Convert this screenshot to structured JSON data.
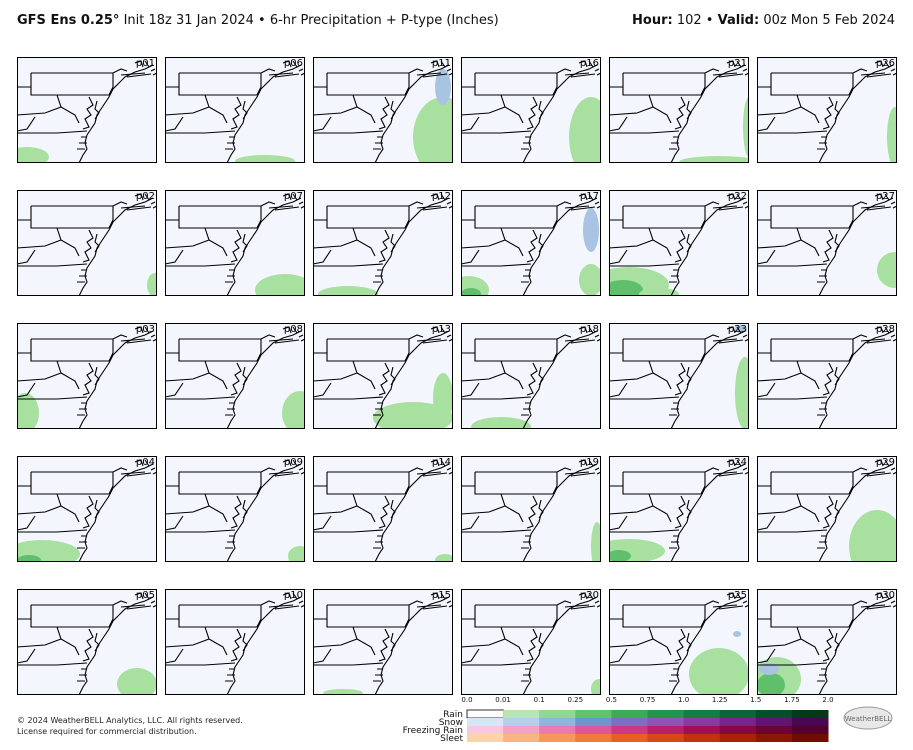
{
  "header": {
    "model": "GFS Ens 0.25°",
    "description": "Init 18z 31 Jan 2024 • 6-hr Precipitation + P-type (Inches)",
    "hour_label": "Hour:",
    "hour": "102 •",
    "valid_label": "Valid:",
    "valid": "00z Mon 5 Feb 2024"
  },
  "panels": [
    {
      "label": "p01"
    },
    {
      "label": "p02"
    },
    {
      "label": "p03"
    },
    {
      "label": "p04"
    },
    {
      "label": "p05"
    },
    {
      "label": "p06"
    },
    {
      "label": "p07"
    },
    {
      "label": "p08"
    },
    {
      "label": "p09"
    },
    {
      "label": "p10"
    },
    {
      "label": "p11"
    },
    {
      "label": "p12"
    },
    {
      "label": "p13"
    },
    {
      "label": "p14"
    },
    {
      "label": "p15"
    },
    {
      "label": "p16"
    },
    {
      "label": "p17"
    },
    {
      "label": "p18"
    },
    {
      "label": "p19"
    },
    {
      "label": "p20"
    },
    {
      "label": "p21"
    },
    {
      "label": "p22"
    },
    {
      "label": "p23"
    },
    {
      "label": "p24"
    },
    {
      "label": "p25"
    },
    {
      "label": "p26"
    },
    {
      "label": "p27"
    },
    {
      "label": "p28"
    },
    {
      "label": "p29"
    },
    {
      "label": "p30"
    }
  ],
  "legend": {
    "ticks": [
      "0.0",
      "0.01",
      "0.1",
      "0.25",
      "0.5",
      "0.75",
      "1.0",
      "1.25",
      "1.5",
      "1.75",
      "2.0"
    ],
    "rows": [
      {
        "name": "Rain",
        "colors": [
          "#ffffff",
          "#b8e6b0",
          "#8fd88c",
          "#5fc46a",
          "#3aad54",
          "#23954a",
          "#157d3f",
          "#0c6533",
          "#064f27",
          "#023a1c"
        ]
      },
      {
        "name": "Snow",
        "colors": [
          "#d6e6f5",
          "#b3cfe9",
          "#8eb5dc",
          "#6f95cc",
          "#7a6fc0",
          "#8e56b3",
          "#8c3aa0",
          "#7a2488",
          "#62146e",
          "#4a0852"
        ]
      },
      {
        "name": "Freezing Rain",
        "colors": [
          "#f8c8de",
          "#f2a2c8",
          "#e97bb1",
          "#dd569b",
          "#cc3884",
          "#b8206e",
          "#a0105a",
          "#870646",
          "#6d0236",
          "#540028"
        ]
      },
      {
        "name": "Sleet",
        "colors": [
          "#fbd3a8",
          "#f9b57e",
          "#f79858",
          "#f27b3a",
          "#e85f22",
          "#d84814",
          "#c2330c",
          "#a92206",
          "#8e1503",
          "#720b01"
        ]
      }
    ]
  },
  "footer": {
    "copyright": "© 2024 WeatherBELL Analytics, LLC. All rights reserved.",
    "license": "License required for commercial distribution.",
    "logo": "WeatherBELL"
  }
}
